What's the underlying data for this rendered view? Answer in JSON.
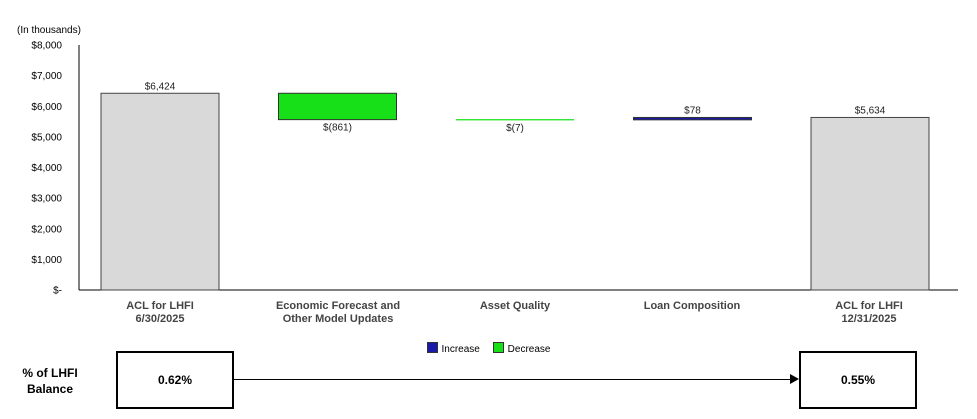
{
  "chart_data": {
    "type": "bar",
    "subtype": "waterfall",
    "unit_note": "(In thousands)",
    "categories": [
      "ACL  for LHFI\n6/30/2025",
      "Economic Forecast and\nOther Model Updates",
      "Asset Quality",
      "Loan Composition",
      "ACL  for LHFI\n12/31/2025"
    ],
    "bars": [
      {
        "kind": "total",
        "start": 0,
        "end": 6424,
        "label": "$6,424"
      },
      {
        "kind": "decrease",
        "start": 6424,
        "end": 5563,
        "label": "$(861)"
      },
      {
        "kind": "decrease",
        "start": 5563,
        "end": 5556,
        "label": "$(7)"
      },
      {
        "kind": "increase",
        "start": 5556,
        "end": 5634,
        "label": "$78"
      },
      {
        "kind": "total",
        "start": 0,
        "end": 5634,
        "label": "$5,634"
      }
    ],
    "ylim": [
      0,
      8000
    ],
    "yticks": [
      0,
      1000,
      2000,
      3000,
      4000,
      5000,
      6000,
      7000,
      8000
    ],
    "ytick_labels": [
      "$-",
      "$1,000",
      "$2,000",
      "$3,000",
      "$4,000",
      "$5,000",
      "$6,000",
      "$7,000",
      "$8,000"
    ],
    "grid": false,
    "legend": [
      {
        "name": "Increase",
        "color": "#1a1aa8"
      },
      {
        "name": "Decrease",
        "color": "#18e018"
      }
    ],
    "legend_position": "bottom-center",
    "colors": {
      "total": "#d9d9d9",
      "increase": "#1a1aa8",
      "decrease": "#18e018"
    }
  },
  "pct_row": {
    "label": "% of LHFI\nBalance",
    "start_value": "0.62%",
    "end_value": "0.55%"
  }
}
